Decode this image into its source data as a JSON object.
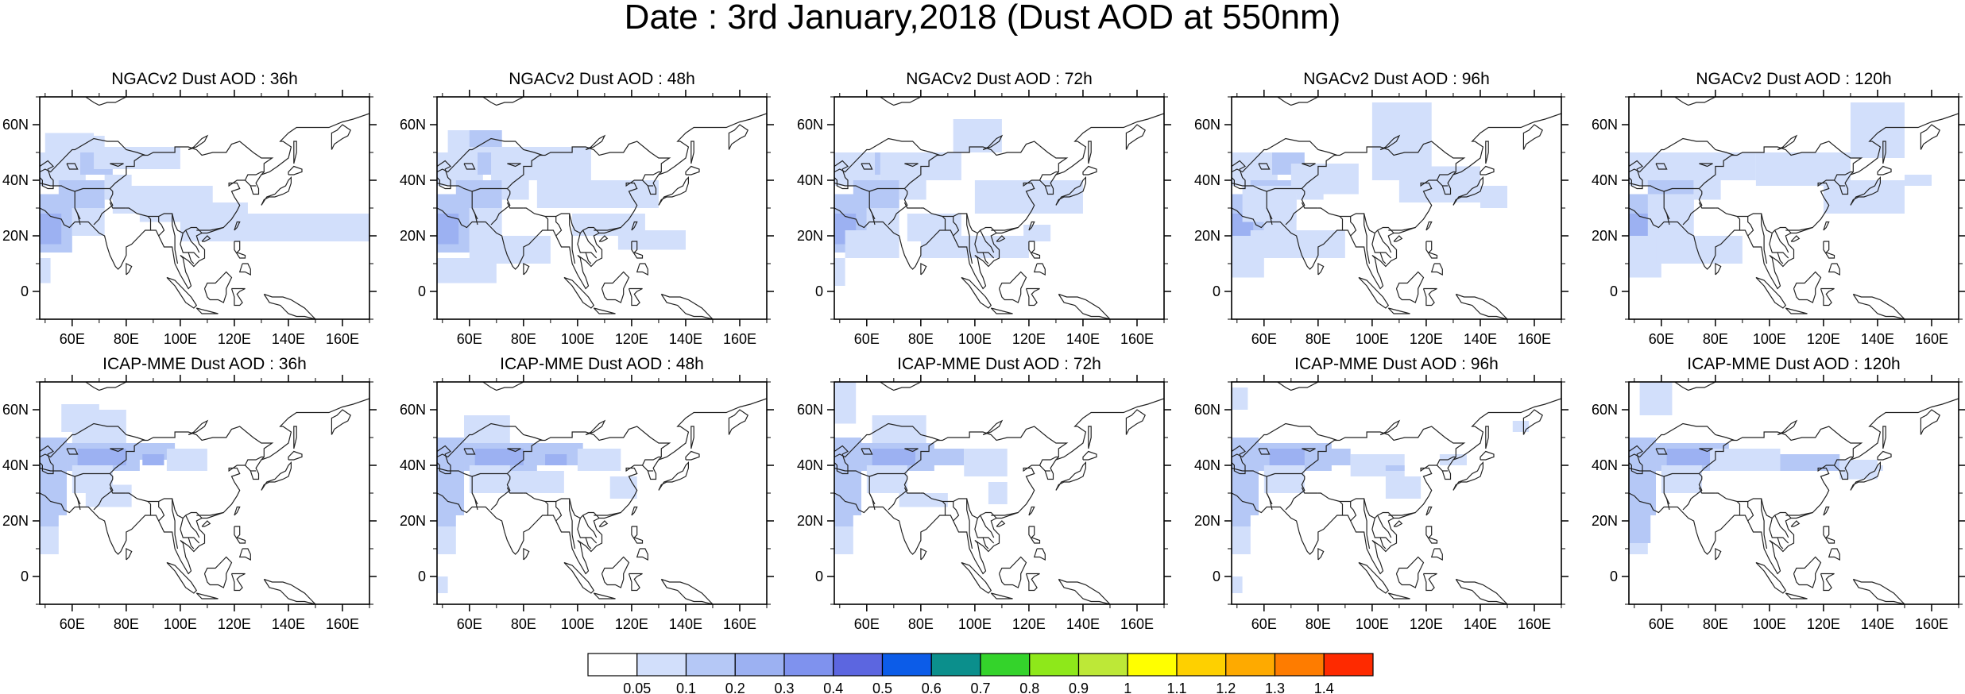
{
  "title": "Date : 3rd January,2018 (Dust AOD at 550nm)",
  "rows": [
    {
      "model": "NGACv2",
      "panels": [
        {
          "title": "NGACv2 Dust AOD : 36h"
        },
        {
          "title": "NGACv2 Dust AOD : 48h"
        },
        {
          "title": "NGACv2 Dust AOD : 72h"
        },
        {
          "title": "NGACv2 Dust AOD : 96h"
        },
        {
          "title": "NGACv2 Dust AOD : 120h"
        }
      ]
    },
    {
      "model": "ICAP-MME",
      "panels": [
        {
          "title": "ICAP-MME Dust AOD : 36h"
        },
        {
          "title": "ICAP-MME Dust AOD : 48h"
        },
        {
          "title": "ICAP-MME Dust AOD : 72h"
        },
        {
          "title": "ICAP-MME Dust AOD : 96h"
        },
        {
          "title": "ICAP-MME Dust AOD : 120h"
        }
      ]
    }
  ],
  "axes": {
    "lon_ticks": [
      "60E",
      "80E",
      "100E",
      "120E",
      "140E",
      "160E"
    ],
    "lon_values": [
      60,
      80,
      100,
      120,
      140,
      160
    ],
    "lat_ticks": [
      "60N",
      "40N",
      "20N",
      "0"
    ],
    "lat_values": [
      60,
      40,
      20,
      0
    ],
    "lon_range": [
      48,
      170
    ],
    "lat_range": [
      -10,
      70
    ]
  },
  "colorbar": {
    "labels": [
      "0.05",
      "0.1",
      "0.2",
      "0.3",
      "0.4",
      "0.5",
      "0.6",
      "0.7",
      "0.8",
      "0.9",
      "1",
      "1.1",
      "1.2",
      "1.3",
      "1.4"
    ],
    "colors": [
      "#ffffff",
      "#d2dffb",
      "#b5c8f6",
      "#9cb1f2",
      "#7f92ee",
      "#5c66e0",
      "#0c5ce8",
      "#0b8f8c",
      "#34d32b",
      "#8ee81a",
      "#bde837",
      "#ffff00",
      "#fed000",
      "#feaa00",
      "#fe7c00",
      "#fe2a00"
    ]
  }
}
